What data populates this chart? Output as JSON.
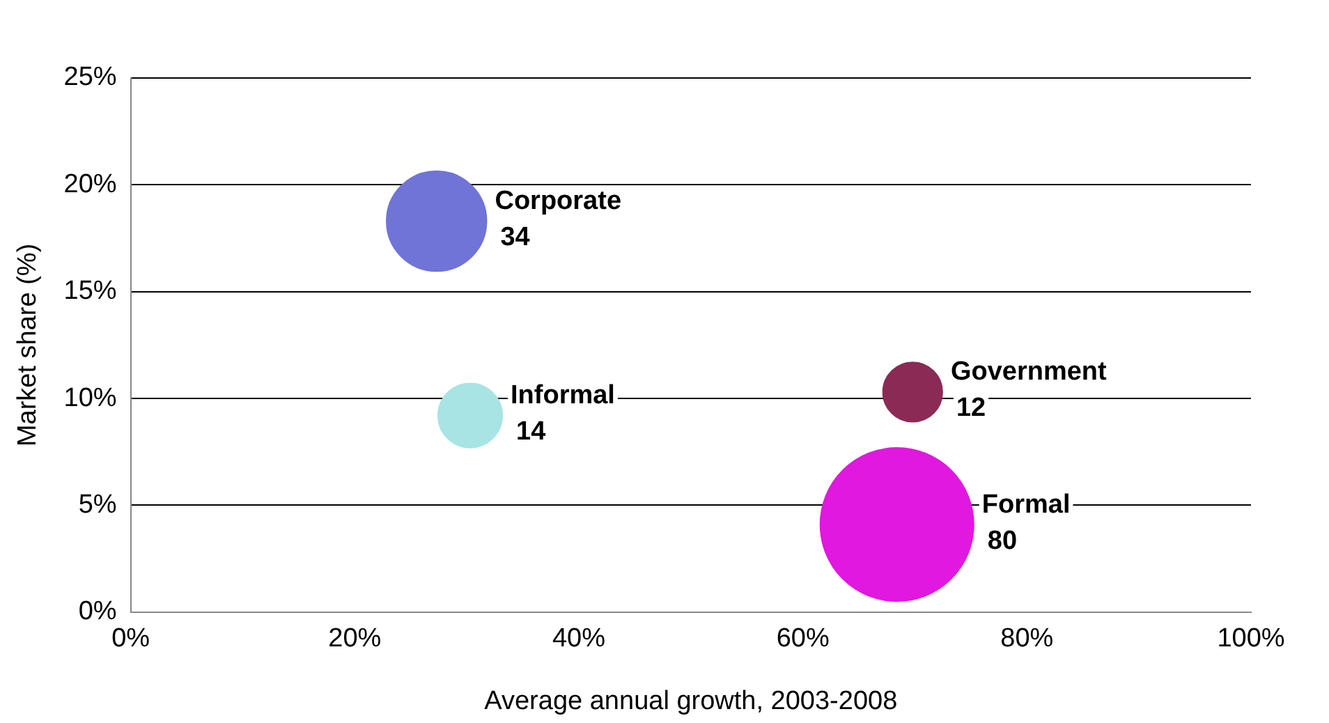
{
  "chart_data": {
    "type": "bubble",
    "xlabel": "Average annual growth, 2003-2008",
    "ylabel": "Market share (%)",
    "series": [
      {
        "name": "Corporate",
        "color": "#6f74d6",
        "x": [
          27.3
        ],
        "values": [
          18.3
        ],
        "sizes": [
          34
        ],
        "value_labels": [
          "34"
        ]
      },
      {
        "name": "Informal",
        "color": "#a8e4e4",
        "x": [
          30.3
        ],
        "values": [
          9.2
        ],
        "sizes": [
          14
        ],
        "value_labels": [
          "14"
        ]
      },
      {
        "name": "Government",
        "color": "#8b2b55",
        "x": [
          69.8
        ],
        "values": [
          10.3
        ],
        "sizes": [
          12
        ],
        "value_labels": [
          "12"
        ]
      },
      {
        "name": "Formal",
        "color": "#e018e0",
        "x": [
          68.4
        ],
        "values": [
          4.1
        ],
        "sizes": [
          80
        ],
        "value_labels": [
          "80"
        ]
      }
    ],
    "xlim": [
      0,
      100
    ],
    "xticks": [
      {
        "value": 0,
        "label": "0%"
      },
      {
        "value": 20,
        "label": "20%"
      },
      {
        "value": 40,
        "label": "40%"
      },
      {
        "value": 60,
        "label": "60%"
      },
      {
        "value": 80,
        "label": "80%"
      },
      {
        "value": 100,
        "label": "100%"
      }
    ],
    "ylim": [
      0,
      25
    ],
    "yticks": [
      {
        "value": 0,
        "label": "0%"
      },
      {
        "value": 5,
        "label": "5%"
      },
      {
        "value": 10,
        "label": "10%"
      },
      {
        "value": 15,
        "label": "15%"
      },
      {
        "value": 20,
        "label": "20%"
      },
      {
        "value": 25,
        "label": "25%"
      }
    ],
    "grid": "y",
    "legend": false
  }
}
